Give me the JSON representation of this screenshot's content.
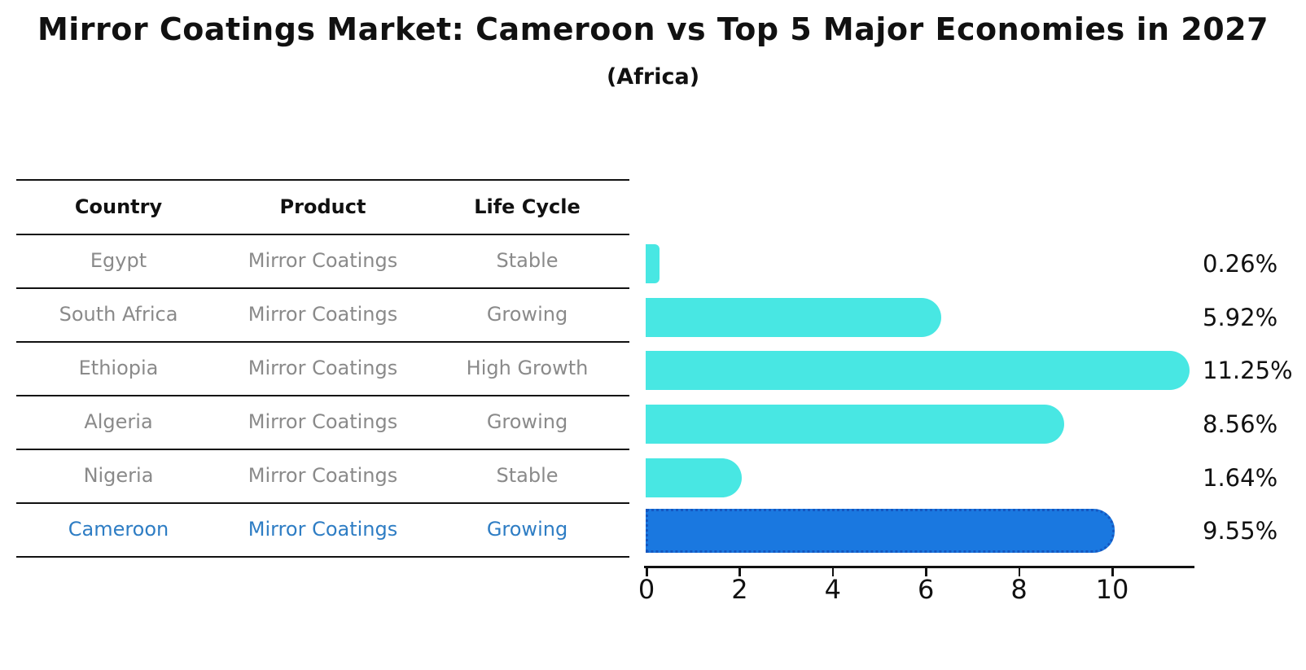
{
  "title": "Mirror Coatings Market: Cameroon vs Top 5 Major Economies in 2027",
  "subtitle": "(Africa)",
  "table": {
    "headers": [
      "Country",
      "Product",
      "Life Cycle"
    ],
    "rows": [
      {
        "country": "Egypt",
        "product": "Mirror Coatings",
        "life_cycle": "Stable",
        "highlight": false
      },
      {
        "country": "South Africa",
        "product": "Mirror Coatings",
        "life_cycle": "Growing",
        "highlight": false
      },
      {
        "country": "Ethiopia",
        "product": "Mirror Coatings",
        "life_cycle": "High Growth",
        "highlight": false
      },
      {
        "country": "Algeria",
        "product": "Mirror Coatings",
        "life_cycle": "Growing",
        "highlight": false
      },
      {
        "country": "Nigeria",
        "product": "Mirror Coatings",
        "life_cycle": "Stable",
        "highlight": false
      },
      {
        "country": "Cameroon",
        "product": "Mirror Coatings",
        "life_cycle": "Growing",
        "highlight": true
      }
    ]
  },
  "chart_data": {
    "type": "bar",
    "orientation": "horizontal",
    "title": "Mirror Coatings Market: Cameroon vs Top 5 Major Economies in 2027",
    "subtitle": "(Africa)",
    "categories": [
      "Egypt",
      "South Africa",
      "Ethiopia",
      "Algeria",
      "Nigeria",
      "Cameroon"
    ],
    "values": [
      0.26,
      5.92,
      11.25,
      8.56,
      1.64,
      9.55
    ],
    "value_labels": [
      "0.26%",
      "5.92%",
      "11.25%",
      "8.56%",
      "1.64%",
      "9.55%"
    ],
    "x_ticks": [
      0,
      2,
      4,
      6,
      8,
      10
    ],
    "xlim": [
      0,
      11.78
    ],
    "xlabel": "",
    "ylabel": "",
    "grid": false,
    "legend": false,
    "highlight_category": "Cameroon"
  },
  "colors": {
    "bar_default": "#48e7e3",
    "bar_highlight": "#1a78e0",
    "bar_highlight_border": "#1557c0",
    "table_row_text": "#8a8a8a",
    "table_highlight_text": "#2e7dc4",
    "text": "#111111",
    "background": "#ffffff"
  }
}
